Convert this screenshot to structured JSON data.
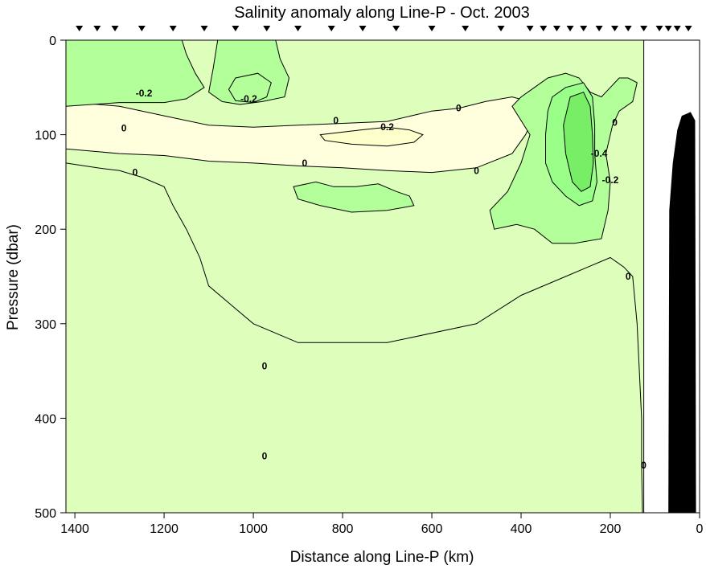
{
  "chart_data": {
    "type": "contour",
    "title": "Salinity anomaly along Line-P - Oct. 2003",
    "xlabel": "Distance along Line-P (km)",
    "ylabel": "Pressure (dbar)",
    "xlim": [
      1420,
      0
    ],
    "ylim": [
      0,
      500
    ],
    "x_reversed": true,
    "y_reversed": true,
    "x_ticks": [
      1400,
      1200,
      1000,
      800,
      600,
      400,
      200,
      0
    ],
    "y_ticks": [
      0,
      100,
      200,
      300,
      400,
      500
    ],
    "station_markers_km": [
      1390,
      1350,
      1310,
      1250,
      1180,
      1110,
      1040,
      970,
      900,
      825,
      755,
      680,
      600,
      525,
      445,
      380,
      350,
      320,
      290,
      260,
      225,
      190,
      160,
      125,
      90,
      70,
      50,
      25
    ],
    "data_limit_km": 125,
    "bathymetry_top_dbar": 75,
    "colors": {
      "positive_high": "#ffffcc",
      "positive": "#ffffdd",
      "zero": "#ddffbb",
      "neg_0_2": "#b3ff99",
      "neg_0_3": "#99ff88",
      "neg_0_4": "#77ee66",
      "bathymetry": "#000000"
    },
    "contour_levels": [
      -0.4,
      -0.2,
      0,
      0.2
    ],
    "contour_labels": [
      {
        "text": "-0.2",
        "x": 1245,
        "y": 56
      },
      {
        "text": "-0.2",
        "x": 1010,
        "y": 62
      },
      {
        "text": "0",
        "x": 540,
        "y": 72
      },
      {
        "text": "0",
        "x": 815,
        "y": 85
      },
      {
        "text": "0",
        "x": 1290,
        "y": 93
      },
      {
        "text": "0.2",
        "x": 700,
        "y": 92
      },
      {
        "text": "0",
        "x": 190,
        "y": 87
      },
      {
        "text": "0",
        "x": 885,
        "y": 130
      },
      {
        "text": "0",
        "x": 500,
        "y": 138
      },
      {
        "text": "0",
        "x": 1265,
        "y": 140
      },
      {
        "text": "-0.4",
        "x": 225,
        "y": 120
      },
      {
        "text": "-0.2",
        "x": 200,
        "y": 148
      },
      {
        "text": "0",
        "x": 160,
        "y": 250
      },
      {
        "text": "0",
        "x": 975,
        "y": 345
      },
      {
        "text": "0",
        "x": 975,
        "y": 440
      },
      {
        "text": "0",
        "x": 125,
        "y": 450
      }
    ],
    "regions": [
      {
        "name": "neg-left-1",
        "level": -0.2,
        "color": "neg_0_2",
        "points": [
          [
            1420,
            40
          ],
          [
            1350,
            35
          ],
          [
            1300,
            45
          ],
          [
            1270,
            55
          ],
          [
            1240,
            54
          ],
          [
            1200,
            57
          ],
          [
            1170,
            60
          ],
          [
            1190,
            65
          ],
          [
            1250,
            65
          ],
          [
            1300,
            60
          ],
          [
            1360,
            55
          ],
          [
            1420,
            55
          ]
        ]
      },
      {
        "name": "neg-left-top",
        "level": -0.1,
        "color": "neg_0_2",
        "points": [
          [
            1420,
            0
          ],
          [
            1160,
            0
          ],
          [
            1150,
            15
          ],
          [
            1130,
            35
          ],
          [
            1110,
            50
          ],
          [
            1150,
            62
          ],
          [
            1200,
            66
          ],
          [
            1300,
            66
          ],
          [
            1420,
            70
          ]
        ]
      },
      {
        "name": "neg-mid-top",
        "level": -0.1,
        "color": "neg_0_2",
        "points": [
          [
            1080,
            0
          ],
          [
            950,
            0
          ],
          [
            940,
            20
          ],
          [
            920,
            40
          ],
          [
            930,
            60
          ],
          [
            980,
            65
          ],
          [
            1030,
            68
          ],
          [
            1070,
            65
          ],
          [
            1100,
            55
          ],
          [
            1090,
            30
          ]
        ]
      },
      {
        "name": "neg-mid-inner",
        "level": -0.2,
        "color": "neg_0_2",
        "points": [
          [
            1040,
            40
          ],
          [
            990,
            35
          ],
          [
            960,
            45
          ],
          [
            970,
            60
          ],
          [
            1000,
            66
          ],
          [
            1040,
            64
          ],
          [
            1055,
            52
          ]
        ]
      },
      {
        "name": "neg-small-blob",
        "level": -0.1,
        "color": "neg_0_2",
        "points": [
          [
            910,
            155
          ],
          [
            860,
            150
          ],
          [
            820,
            155
          ],
          [
            770,
            155
          ],
          [
            720,
            152
          ],
          [
            680,
            160
          ],
          [
            650,
            165
          ],
          [
            640,
            175
          ],
          [
            700,
            180
          ],
          [
            780,
            182
          ],
          [
            850,
            175
          ],
          [
            900,
            168
          ]
        ]
      },
      {
        "name": "neg-right-outer",
        "level": -0.1,
        "color": "neg_0_2",
        "points": [
          [
            380,
            100
          ],
          [
            420,
            70
          ],
          [
            400,
            60
          ],
          [
            370,
            50
          ],
          [
            340,
            40
          ],
          [
            300,
            35
          ],
          [
            270,
            40
          ],
          [
            245,
            55
          ],
          [
            220,
            60
          ],
          [
            200,
            50
          ],
          [
            180,
            40
          ],
          [
            160,
            40
          ],
          [
            140,
            45
          ],
          [
            150,
            65
          ],
          [
            180,
            75
          ],
          [
            195,
            90
          ],
          [
            210,
            120
          ],
          [
            200,
            150
          ],
          [
            205,
            180
          ],
          [
            220,
            210
          ],
          [
            280,
            215
          ],
          [
            330,
            215
          ],
          [
            370,
            200
          ],
          [
            410,
            195
          ],
          [
            460,
            200
          ],
          [
            470,
            180
          ],
          [
            430,
            160
          ],
          [
            400,
            130
          ]
        ]
      },
      {
        "name": "neg-right-inner-1",
        "level": -0.2,
        "color": "neg_0_3",
        "points": [
          [
            330,
            60
          ],
          [
            300,
            50
          ],
          [
            260,
            45
          ],
          [
            240,
            60
          ],
          [
            235,
            90
          ],
          [
            235,
            120
          ],
          [
            230,
            150
          ],
          [
            240,
            170
          ],
          [
            270,
            175
          ],
          [
            300,
            165
          ],
          [
            330,
            150
          ],
          [
            345,
            130
          ],
          [
            345,
            100
          ],
          [
            340,
            75
          ]
        ]
      },
      {
        "name": "neg-right-inner-2",
        "level": -0.3,
        "color": "neg_0_4",
        "points": [
          [
            290,
            60
          ],
          [
            260,
            55
          ],
          [
            245,
            70
          ],
          [
            240,
            100
          ],
          [
            238,
            130
          ],
          [
            245,
            155
          ],
          [
            265,
            160
          ],
          [
            285,
            150
          ],
          [
            300,
            120
          ],
          [
            305,
            90
          ]
        ]
      }
    ],
    "zero_contours": [
      {
        "name": "upper-zero",
        "points": [
          [
            1420,
            65
          ],
          [
            1300,
            70
          ],
          [
            1200,
            80
          ],
          [
            1100,
            90
          ],
          [
            1000,
            92
          ],
          [
            900,
            90
          ],
          [
            800,
            88
          ],
          [
            700,
            86
          ],
          [
            600,
            75
          ],
          [
            540,
            72
          ],
          [
            480,
            65
          ],
          [
            420,
            60
          ],
          [
            380,
            65
          ],
          [
            370,
            80
          ],
          [
            390,
            100
          ],
          [
            420,
            120
          ],
          [
            500,
            135
          ],
          [
            600,
            140
          ],
          [
            700,
            138
          ],
          [
            800,
            135
          ],
          [
            900,
            133
          ],
          [
            1000,
            130
          ],
          [
            1100,
            128
          ],
          [
            1200,
            122
          ],
          [
            1300,
            120
          ],
          [
            1420,
            115
          ]
        ]
      },
      {
        "name": "lower-zero",
        "points": [
          [
            1420,
            130
          ],
          [
            1350,
            135
          ],
          [
            1300,
            138
          ],
          [
            1250,
            145
          ],
          [
            1200,
            155
          ],
          [
            1180,
            175
          ],
          [
            1150,
            200
          ],
          [
            1120,
            230
          ],
          [
            1100,
            260
          ],
          [
            1050,
            280
          ],
          [
            1000,
            300
          ],
          [
            900,
            320
          ],
          [
            700,
            320
          ],
          [
            500,
            300
          ],
          [
            400,
            270
          ],
          [
            300,
            250
          ],
          [
            250,
            240
          ],
          [
            200,
            230
          ],
          [
            170,
            240
          ],
          [
            150,
            250
          ],
          [
            140,
            300
          ],
          [
            135,
            350
          ],
          [
            130,
            400
          ],
          [
            130,
            450
          ],
          [
            128,
            500
          ]
        ]
      }
    ]
  }
}
